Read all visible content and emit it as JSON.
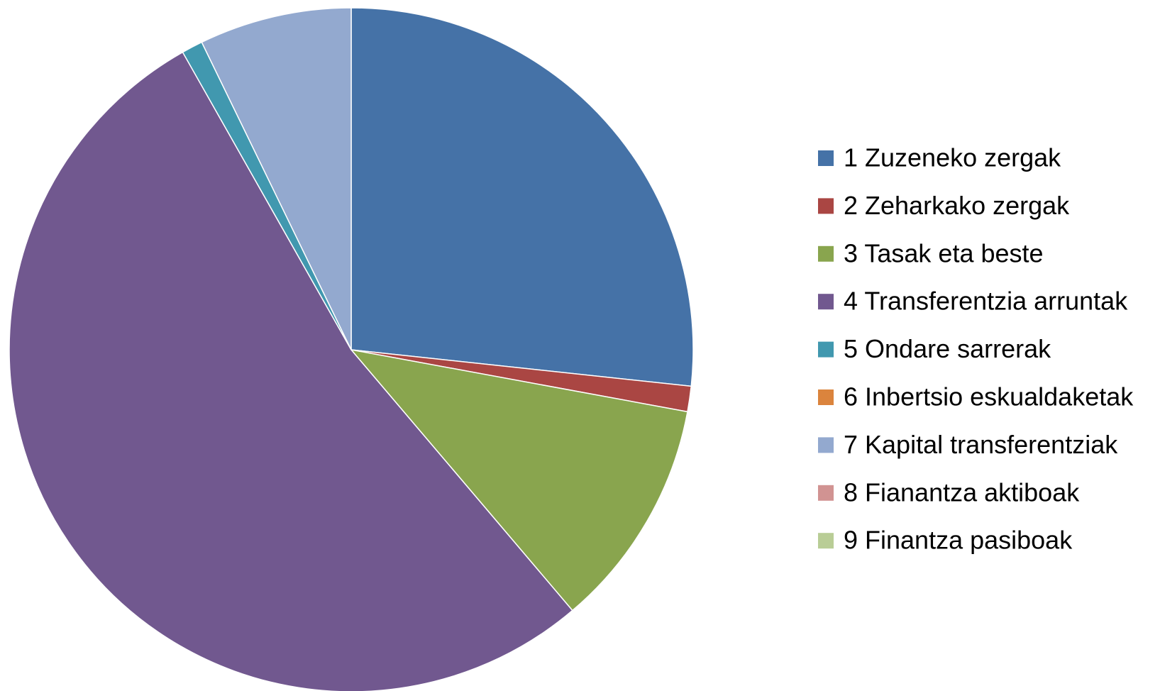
{
  "chart_data": {
    "type": "pie",
    "categories": [
      "1 Zuzeneko zergak",
      "2 Zeharkako zergak",
      "3 Tasak eta beste",
      "4 Transferentzia arruntak",
      "5 Ondare sarrerak",
      "6 Inbertsio eskualdaketak",
      "7 Kapital transferentziak",
      "8 Fianantza aktiboak",
      "9 Finantza pasiboak"
    ],
    "values": [
      26.7,
      1.2,
      10.9,
      53.0,
      1.0,
      0,
      7.2,
      0,
      0
    ],
    "colors": [
      "#4572a7",
      "#aa4643",
      "#89a54e",
      "#71588f",
      "#4198af",
      "#db843d",
      "#93a9cf",
      "#d19392",
      "#b9cd96"
    ],
    "legend": "right"
  }
}
